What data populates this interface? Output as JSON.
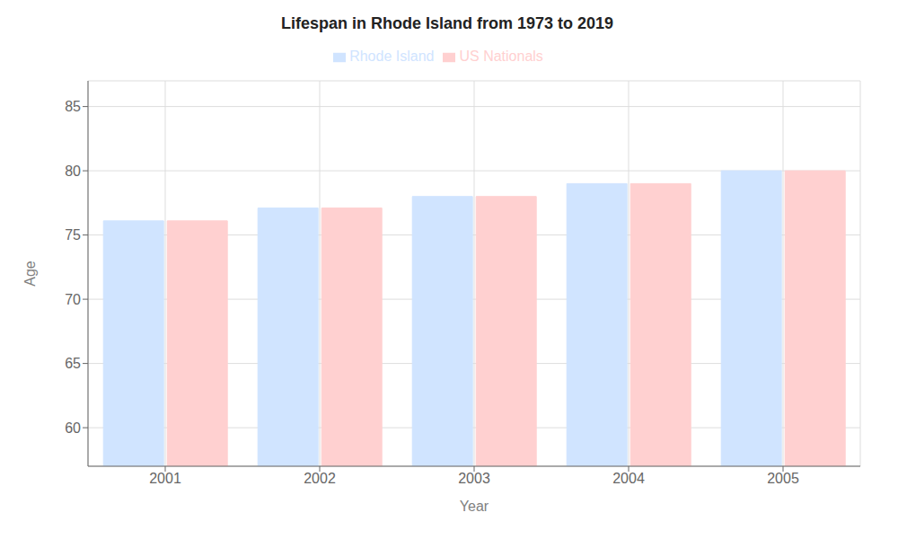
{
  "chart_data": {
    "type": "bar",
    "title": "Lifespan in Rhode Island from 1973 to 2019",
    "x_label": "Year",
    "y_label": "Age",
    "categories": [
      "2001",
      "2002",
      "2003",
      "2004",
      "2005"
    ],
    "series": [
      {
        "name": "Rhode Island",
        "color": "#d0e4ff",
        "values": [
          76.1,
          77.1,
          78.0,
          79.0,
          80.0
        ]
      },
      {
        "name": "US Nationals",
        "color": "#ffd0d0",
        "values": [
          76.1,
          77.1,
          78.0,
          79.0,
          80.0
        ]
      }
    ],
    "ylim": [
      57,
      87
    ],
    "yticks": [
      60,
      65,
      70,
      75,
      80,
      85
    ],
    "grid": true,
    "legend": "top"
  }
}
